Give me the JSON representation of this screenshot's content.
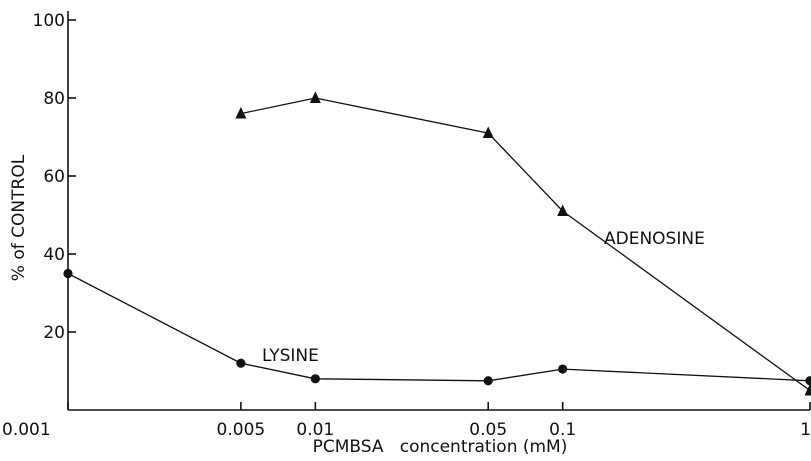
{
  "chart_data": {
    "type": "line",
    "xlabel": "PCMBSA   concentration (mM)",
    "ylabel": "% of CONTROL",
    "x_scale": "log",
    "xlim": [
      0.001,
      1
    ],
    "ylim": [
      0,
      100
    ],
    "x_ticks": [
      {
        "value": 0.001,
        "label": "0.001"
      },
      {
        "value": 0.005,
        "label": "0.005"
      },
      {
        "value": 0.01,
        "label": "0.01"
      },
      {
        "value": 0.05,
        "label": "0.05"
      },
      {
        "value": 0.1,
        "label": "0.1"
      },
      {
        "value": 1,
        "label": "1"
      }
    ],
    "y_ticks": [
      {
        "value": 20,
        "label": "20"
      },
      {
        "value": 40,
        "label": "40"
      },
      {
        "value": 60,
        "label": "60"
      },
      {
        "value": 80,
        "label": "80"
      },
      {
        "value": 100,
        "label": "100"
      }
    ],
    "series": [
      {
        "name": "ADENOSINE",
        "marker": "triangle",
        "x": [
          0.005,
          0.01,
          0.05,
          0.1,
          1
        ],
        "y": [
          76,
          80,
          71,
          51,
          5
        ]
      },
      {
        "name": "LYSINE",
        "marker": "circle",
        "x": [
          0.001,
          0.005,
          0.01,
          0.05,
          0.1,
          1
        ],
        "y": [
          35,
          12,
          8,
          7.5,
          10.5,
          7.5
        ]
      }
    ],
    "grid": false,
    "legend": "none (series labelled inline)"
  }
}
